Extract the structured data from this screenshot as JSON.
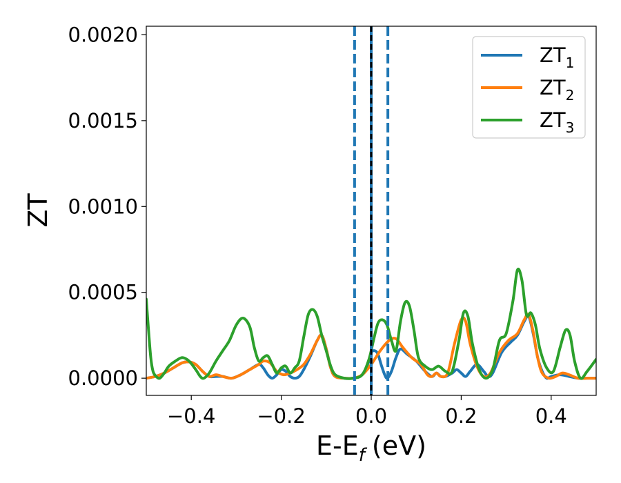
{
  "chart_data": {
    "type": "line",
    "xlabel": "E-E",
    "xlabel_sub": "f",
    "xlabel_unit": "(eV)",
    "ylabel": "ZT",
    "xlim": [
      -0.5,
      0.5
    ],
    "ylim": [
      -0.0001,
      0.00205
    ],
    "xticks": [
      -0.4,
      -0.2,
      0.0,
      0.2,
      0.4
    ],
    "xtick_labels": [
      "−0.4",
      "−0.2",
      "0.0",
      "0.2",
      "0.4"
    ],
    "yticks": [
      0.0,
      0.0005,
      0.001,
      0.0015,
      0.002
    ],
    "ytick_labels": [
      "0.0000",
      "0.0005",
      "0.0010",
      "0.0015",
      "0.0020"
    ],
    "grid": false,
    "legend_position": "top-right",
    "vlines": [
      {
        "x": -0.037,
        "style": "dashed",
        "color": "#1f77b4"
      },
      {
        "x": 0.0,
        "style": "solid",
        "color": "#1f77b4"
      },
      {
        "x": 0.0,
        "style": "dashed",
        "color": "#000000"
      },
      {
        "x": 0.037,
        "style": "dashed",
        "color": "#1f77b4"
      }
    ],
    "series": [
      {
        "name": "ZT",
        "name_sub": "1",
        "color": "#1f77b4",
        "points": [
          [
            -0.5,
            0.0
          ],
          [
            -0.48,
            1e-05
          ],
          [
            -0.46,
            3e-05
          ],
          [
            -0.44,
            6e-05
          ],
          [
            -0.42,
            9e-05
          ],
          [
            -0.405,
            9.5e-05
          ],
          [
            -0.39,
            8e-05
          ],
          [
            -0.375,
            4e-05
          ],
          [
            -0.36,
            1e-05
          ],
          [
            -0.345,
            1e-05
          ],
          [
            -0.33,
            1e-05
          ],
          [
            -0.31,
            0.0
          ],
          [
            -0.29,
            2e-05
          ],
          [
            -0.27,
            5e-05
          ],
          [
            -0.25,
            8e-05
          ],
          [
            -0.24,
            6e-05
          ],
          [
            -0.23,
            2e-05
          ],
          [
            -0.22,
            0.0
          ],
          [
            -0.21,
            2e-05
          ],
          [
            -0.2,
            5e-05
          ],
          [
            -0.19,
            4e-05
          ],
          [
            -0.18,
            1e-05
          ],
          [
            -0.17,
            0.0
          ],
          [
            -0.16,
            1e-05
          ],
          [
            -0.15,
            5e-05
          ],
          [
            -0.135,
            0.00013
          ],
          [
            -0.12,
            0.00022
          ],
          [
            -0.11,
            0.00025
          ],
          [
            -0.1,
            0.00017
          ],
          [
            -0.09,
            6e-05
          ],
          [
            -0.08,
            1e-05
          ],
          [
            -0.06,
            0.0
          ],
          [
            -0.04,
            0.0
          ],
          [
            -0.025,
            1e-05
          ],
          [
            -0.015,
            4e-05
          ],
          [
            -0.005,
            0.0001
          ],
          [
            0.0,
            0.00015
          ],
          [
            0.008,
            0.00016
          ],
          [
            0.015,
            0.00014
          ],
          [
            0.022,
            8e-05
          ],
          [
            0.03,
            2e-05
          ],
          [
            0.036,
            0.0
          ],
          [
            0.045,
            4e-05
          ],
          [
            0.055,
            0.00012
          ],
          [
            0.065,
            0.00017
          ],
          [
            0.08,
            0.00014
          ],
          [
            0.1,
            0.0001
          ],
          [
            0.12,
            4e-05
          ],
          [
            0.135,
            1e-05
          ],
          [
            0.145,
            3e-05
          ],
          [
            0.155,
            1e-05
          ],
          [
            0.165,
            1e-05
          ],
          [
            0.18,
            3e-05
          ],
          [
            0.19,
            5e-05
          ],
          [
            0.2,
            3e-05
          ],
          [
            0.21,
            1e-05
          ],
          [
            0.22,
            4e-05
          ],
          [
            0.235,
            8e-05
          ],
          [
            0.25,
            4e-05
          ],
          [
            0.26,
            1e-05
          ],
          [
            0.27,
            3e-05
          ],
          [
            0.29,
            0.00015
          ],
          [
            0.31,
            0.00021
          ],
          [
            0.325,
            0.00025
          ],
          [
            0.34,
            0.00033
          ],
          [
            0.35,
            0.00036
          ],
          [
            0.36,
            0.00026
          ],
          [
            0.37,
            0.00012
          ],
          [
            0.38,
            4e-05
          ],
          [
            0.39,
            0.0
          ],
          [
            0.4,
            1e-05
          ],
          [
            0.42,
            2e-05
          ],
          [
            0.44,
            1e-05
          ],
          [
            0.46,
            0.0
          ],
          [
            0.48,
            0.0
          ],
          [
            0.5,
            0.0
          ]
        ]
      },
      {
        "name": "ZT",
        "name_sub": "2",
        "color": "#ff7f0e",
        "points": [
          [
            -0.5,
            0.0
          ],
          [
            -0.48,
            1e-05
          ],
          [
            -0.46,
            3e-05
          ],
          [
            -0.44,
            6e-05
          ],
          [
            -0.42,
            9e-05
          ],
          [
            -0.405,
            9.5e-05
          ],
          [
            -0.39,
            8e-05
          ],
          [
            -0.375,
            4e-05
          ],
          [
            -0.36,
            1e-05
          ],
          [
            -0.345,
            2e-05
          ],
          [
            -0.33,
            1e-05
          ],
          [
            -0.31,
            0.0
          ],
          [
            -0.29,
            2e-05
          ],
          [
            -0.27,
            5e-05
          ],
          [
            -0.25,
            8e-05
          ],
          [
            -0.24,
            0.0001
          ],
          [
            -0.225,
            9e-05
          ],
          [
            -0.21,
            4e-05
          ],
          [
            -0.195,
            2e-05
          ],
          [
            -0.18,
            3e-05
          ],
          [
            -0.165,
            5e-05
          ],
          [
            -0.15,
            8e-05
          ],
          [
            -0.135,
            0.00014
          ],
          [
            -0.12,
            0.00022
          ],
          [
            -0.11,
            0.00025
          ],
          [
            -0.1,
            0.00017
          ],
          [
            -0.09,
            6e-05
          ],
          [
            -0.08,
            1e-05
          ],
          [
            -0.06,
            0.0
          ],
          [
            -0.04,
            0.0
          ],
          [
            -0.02,
            2e-05
          ],
          [
            0.0,
            8e-05
          ],
          [
            0.02,
            0.00016
          ],
          [
            0.04,
            0.00022
          ],
          [
            0.055,
            0.00023
          ],
          [
            0.07,
            0.00018
          ],
          [
            0.09,
            0.00012
          ],
          [
            0.11,
            8e-05
          ],
          [
            0.125,
            2e-05
          ],
          [
            0.135,
            1e-05
          ],
          [
            0.145,
            3e-05
          ],
          [
            0.155,
            1e-05
          ],
          [
            0.17,
            3e-05
          ],
          [
            0.185,
            0.0002
          ],
          [
            0.2,
            0.00034
          ],
          [
            0.21,
            0.00033
          ],
          [
            0.22,
            0.0002
          ],
          [
            0.235,
            7e-05
          ],
          [
            0.25,
            1e-05
          ],
          [
            0.265,
            3e-05
          ],
          [
            0.285,
            0.00015
          ],
          [
            0.305,
            0.00022
          ],
          [
            0.325,
            0.00026
          ],
          [
            0.34,
            0.00034
          ],
          [
            0.35,
            0.00037
          ],
          [
            0.36,
            0.00027
          ],
          [
            0.37,
            0.00012
          ],
          [
            0.38,
            3e-05
          ],
          [
            0.395,
            0.0
          ],
          [
            0.41,
            1e-05
          ],
          [
            0.425,
            3e-05
          ],
          [
            0.44,
            2e-05
          ],
          [
            0.46,
            0.0
          ],
          [
            0.48,
            0.0
          ],
          [
            0.5,
            0.0
          ]
        ]
      },
      {
        "name": "ZT",
        "name_sub": "3",
        "color": "#2ca02c",
        "points": [
          [
            -0.5,
            0.00046
          ],
          [
            -0.495,
            0.00028
          ],
          [
            -0.49,
            0.00012
          ],
          [
            -0.485,
            4e-05
          ],
          [
            -0.478,
            1e-05
          ],
          [
            -0.47,
            0.0
          ],
          [
            -0.46,
            3e-05
          ],
          [
            -0.45,
            7e-05
          ],
          [
            -0.435,
            0.0001
          ],
          [
            -0.42,
            0.00012
          ],
          [
            -0.405,
            0.0001
          ],
          [
            -0.39,
            5e-05
          ],
          [
            -0.38,
            1e-05
          ],
          [
            -0.372,
            0.0
          ],
          [
            -0.36,
            3e-05
          ],
          [
            -0.345,
            0.0001
          ],
          [
            -0.33,
            0.00016
          ],
          [
            -0.315,
            0.00022
          ],
          [
            -0.3,
            0.00031
          ],
          [
            -0.285,
            0.00035
          ],
          [
            -0.27,
            0.0003
          ],
          [
            -0.26,
            0.00018
          ],
          [
            -0.25,
            0.0001
          ],
          [
            -0.24,
            0.00012
          ],
          [
            -0.23,
            0.00013
          ],
          [
            -0.22,
            8e-05
          ],
          [
            -0.21,
            3e-05
          ],
          [
            -0.2,
            6e-05
          ],
          [
            -0.19,
            7e-05
          ],
          [
            -0.18,
            3e-05
          ],
          [
            -0.17,
            6e-05
          ],
          [
            -0.16,
            0.0001
          ],
          [
            -0.15,
            0.00024
          ],
          [
            -0.14,
            0.00037
          ],
          [
            -0.13,
            0.0004
          ],
          [
            -0.12,
            0.00036
          ],
          [
            -0.11,
            0.00025
          ],
          [
            -0.1,
            0.00016
          ],
          [
            -0.09,
            7e-05
          ],
          [
            -0.08,
            2e-05
          ],
          [
            -0.06,
            0.0
          ],
          [
            -0.04,
            0.0
          ],
          [
            -0.02,
            2e-05
          ],
          [
            -0.005,
            0.00011
          ],
          [
            0.005,
            0.00022
          ],
          [
            0.015,
            0.00032
          ],
          [
            0.025,
            0.00034
          ],
          [
            0.035,
            0.00031
          ],
          [
            0.045,
            0.00022
          ],
          [
            0.055,
            0.00016
          ],
          [
            0.065,
            0.00033
          ],
          [
            0.075,
            0.00044
          ],
          [
            0.085,
            0.00042
          ],
          [
            0.095,
            0.00028
          ],
          [
            0.105,
            0.00012
          ],
          [
            0.12,
            7e-05
          ],
          [
            0.135,
            5e-05
          ],
          [
            0.15,
            7e-05
          ],
          [
            0.165,
            4e-05
          ],
          [
            0.18,
            4e-05
          ],
          [
            0.195,
            0.00022
          ],
          [
            0.205,
            0.00038
          ],
          [
            0.215,
            0.00036
          ],
          [
            0.225,
            0.0002
          ],
          [
            0.24,
            5e-05
          ],
          [
            0.255,
            0.0
          ],
          [
            0.27,
            5e-05
          ],
          [
            0.285,
            0.00022
          ],
          [
            0.3,
            0.00026
          ],
          [
            0.315,
            0.00045
          ],
          [
            0.325,
            0.00063
          ],
          [
            0.335,
            0.00057
          ],
          [
            0.345,
            0.00037
          ],
          [
            0.355,
            0.00038
          ],
          [
            0.365,
            0.00031
          ],
          [
            0.375,
            0.00017
          ],
          [
            0.39,
            6e-05
          ],
          [
            0.405,
            4e-05
          ],
          [
            0.42,
            0.00018
          ],
          [
            0.432,
            0.00028
          ],
          [
            0.442,
            0.00025
          ],
          [
            0.452,
            0.0001
          ],
          [
            0.465,
            0.0
          ],
          [
            0.48,
            4e-05
          ],
          [
            0.5,
            0.00011
          ]
        ]
      }
    ]
  }
}
